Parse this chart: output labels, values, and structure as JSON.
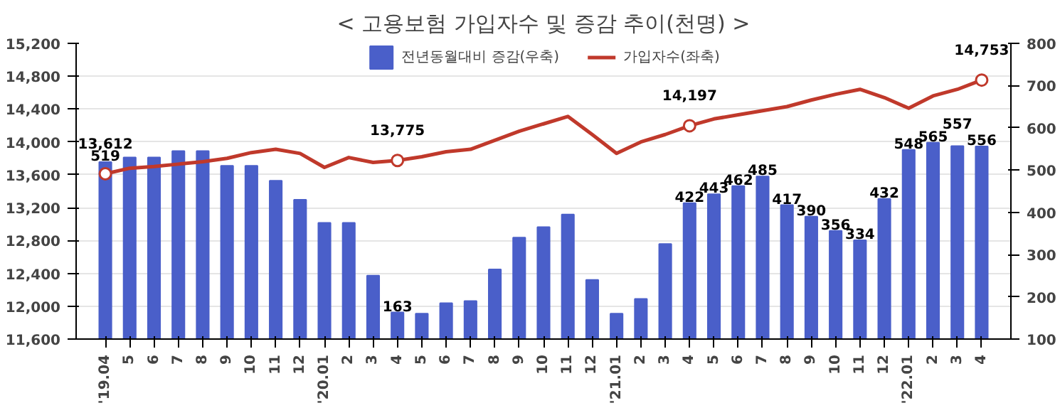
{
  "chart_data": {
    "type": "bar",
    "title": "< 고용보험 가입자수 및 증감 추이(천명) >",
    "categories": [
      "'19.04",
      "5",
      "6",
      "7",
      "8",
      "9",
      "10",
      "11",
      "12",
      "'20.01",
      "2",
      "3",
      "4",
      "5",
      "6",
      "7",
      "8",
      "9",
      "10",
      "11",
      "12",
      "'21.01",
      "2",
      "3",
      "4",
      "5",
      "6",
      "7",
      "8",
      "9",
      "10",
      "11",
      "12",
      "'22.01",
      "2",
      "3",
      "4"
    ],
    "series": [
      {
        "name": "전년동월대비 증감(우축)",
        "axis": "y2",
        "color": "#4a5fc9",
        "values": [
          519,
          530,
          530,
          545,
          545,
          510,
          510,
          475,
          430,
          375,
          375,
          250,
          163,
          160,
          185,
          190,
          265,
          340,
          365,
          395,
          240,
          160,
          195,
          325,
          422,
          443,
          462,
          485,
          417,
          390,
          356,
          334,
          432,
          548,
          565,
          557,
          556
        ],
        "value_labels": [
          "519",
          null,
          null,
          null,
          null,
          null,
          null,
          null,
          null,
          null,
          null,
          null,
          "163",
          null,
          null,
          null,
          null,
          null,
          null,
          null,
          null,
          null,
          null,
          null,
          "422",
          "443",
          "462",
          "485",
          "417",
          "390",
          "356",
          "334",
          "432",
          "548",
          "565",
          "557",
          "556"
        ]
      },
      {
        "name": "가입자수(좌축)",
        "type": "line",
        "color": "#c0392b",
        "values": [
          13612,
          13680,
          13700,
          13730,
          13760,
          13800,
          13870,
          13910,
          13860,
          13690,
          13810,
          13750,
          13775,
          13820,
          13880,
          13910,
          14020,
          14130,
          14220,
          14310,
          14090,
          13860,
          14000,
          14090,
          14197,
          14280,
          14330,
          14380,
          14430,
          14510,
          14580,
          14640,
          14540,
          14410,
          14560,
          14640,
          14753
        ],
        "value_labels": [
          "13,612",
          null,
          null,
          null,
          null,
          null,
          null,
          null,
          null,
          null,
          null,
          null,
          "13,775",
          null,
          null,
          null,
          null,
          null,
          null,
          null,
          null,
          null,
          null,
          null,
          "14,197",
          null,
          null,
          null,
          null,
          null,
          null,
          null,
          null,
          null,
          null,
          null,
          "14,753"
        ]
      }
    ],
    "ylim": [
      11600,
      15200
    ],
    "yticks": [
      {
        "value": 11600,
        "label": "11,600"
      },
      {
        "value": 12000,
        "label": "12,000"
      },
      {
        "value": 12400,
        "label": "12,400"
      },
      {
        "value": 12800,
        "label": "12,800"
      },
      {
        "value": 13200,
        "label": "13,200"
      },
      {
        "value": 13600,
        "label": "13,600"
      },
      {
        "value": 14000,
        "label": "14,000"
      },
      {
        "value": 14400,
        "label": "14,400"
      },
      {
        "value": 14800,
        "label": "14,800"
      },
      {
        "value": 15200,
        "label": "15,200"
      }
    ],
    "y2lim": [
      100,
      800
    ],
    "y2ticks": [
      100,
      200,
      300,
      400,
      500,
      600,
      700,
      800
    ],
    "grid": "y",
    "legend": "top"
  }
}
